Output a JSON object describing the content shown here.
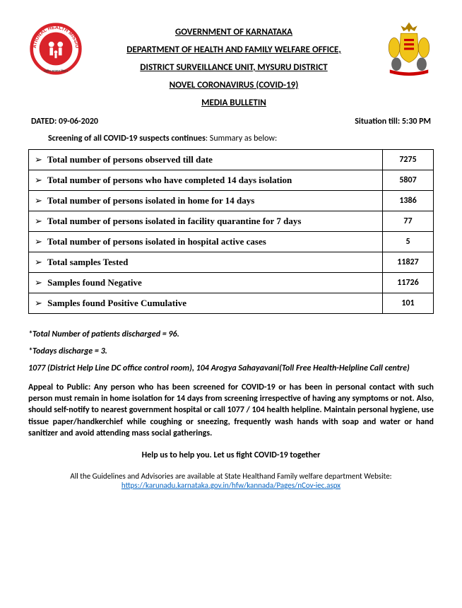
{
  "header": {
    "line1": "GOVERNMENT OF KARNATAKA",
    "line2": "DEPARTMENT OF HEALTH AND FAMILY WELFARE OFFICE,",
    "line3": "DISTRICT SURVEILLANCE UNIT, MYSURU DISTRICT",
    "line4": "NOVEL CORONAVIRUS (COVID-19)",
    "line5": "MEDIA BULLETIN"
  },
  "dated_label": "DATED: 09-06-2020",
  "situation_label": "Situation till: 5:30 PM",
  "intro_bold": "Screening of all COVID-19 suspects continues",
  "intro_rest": ": Summary as below:",
  "table": {
    "rows": [
      {
        "label": "Total number of persons observed till date",
        "value": "7275"
      },
      {
        "label": "Total number of persons who have completed 14 days isolation",
        "value": "5807"
      },
      {
        "label": "Total number of persons isolated in home for 14 days",
        "value": "1386"
      },
      {
        "label": "Total number of persons isolated in facility quarantine for 7 days",
        "value": "77"
      },
      {
        "label": "Total number of persons isolated in hospital active cases",
        "value": "5"
      },
      {
        "label": "Total samples Tested",
        "value": "11827"
      },
      {
        "label": "Samples found Negative",
        "value": "11726"
      },
      {
        "label": "Samples found Positive Cumulative",
        "value": "101"
      }
    ]
  },
  "note_discharged": "*Total Number of patients discharged = 96.",
  "note_today": "*Todays discharge = 3.",
  "helpline": "1077 (District Help Line DC office control room), 104 Arogya Sahayavani(Toll Free Health-Helpline Call centre)",
  "appeal": "Appeal to Public: Any person who has been screened for COVID-19 or has been in personal contact with such person must remain in home isolation for 14 days from screening irrespective of having any symptoms or not. Also, should self-notify to nearest government hospital or call 1077 / 104 health helpline.  Maintain personal hygiene, use tissue paper/handkerchief while coughing or sneezing, frequently wash hands with soap and water or hand sanitizer and avoid attending mass social gatherings.",
  "slogan": "Help us to help you. Let us fight COVID-19 together",
  "footer_text": "All the Guidelines and Advisories are available at State Healthand Family welfare department Website:",
  "footer_link": "https://karunadu.karnataka.gov.in/hfw/kannada/Pages/nCov-iec.aspx"
}
